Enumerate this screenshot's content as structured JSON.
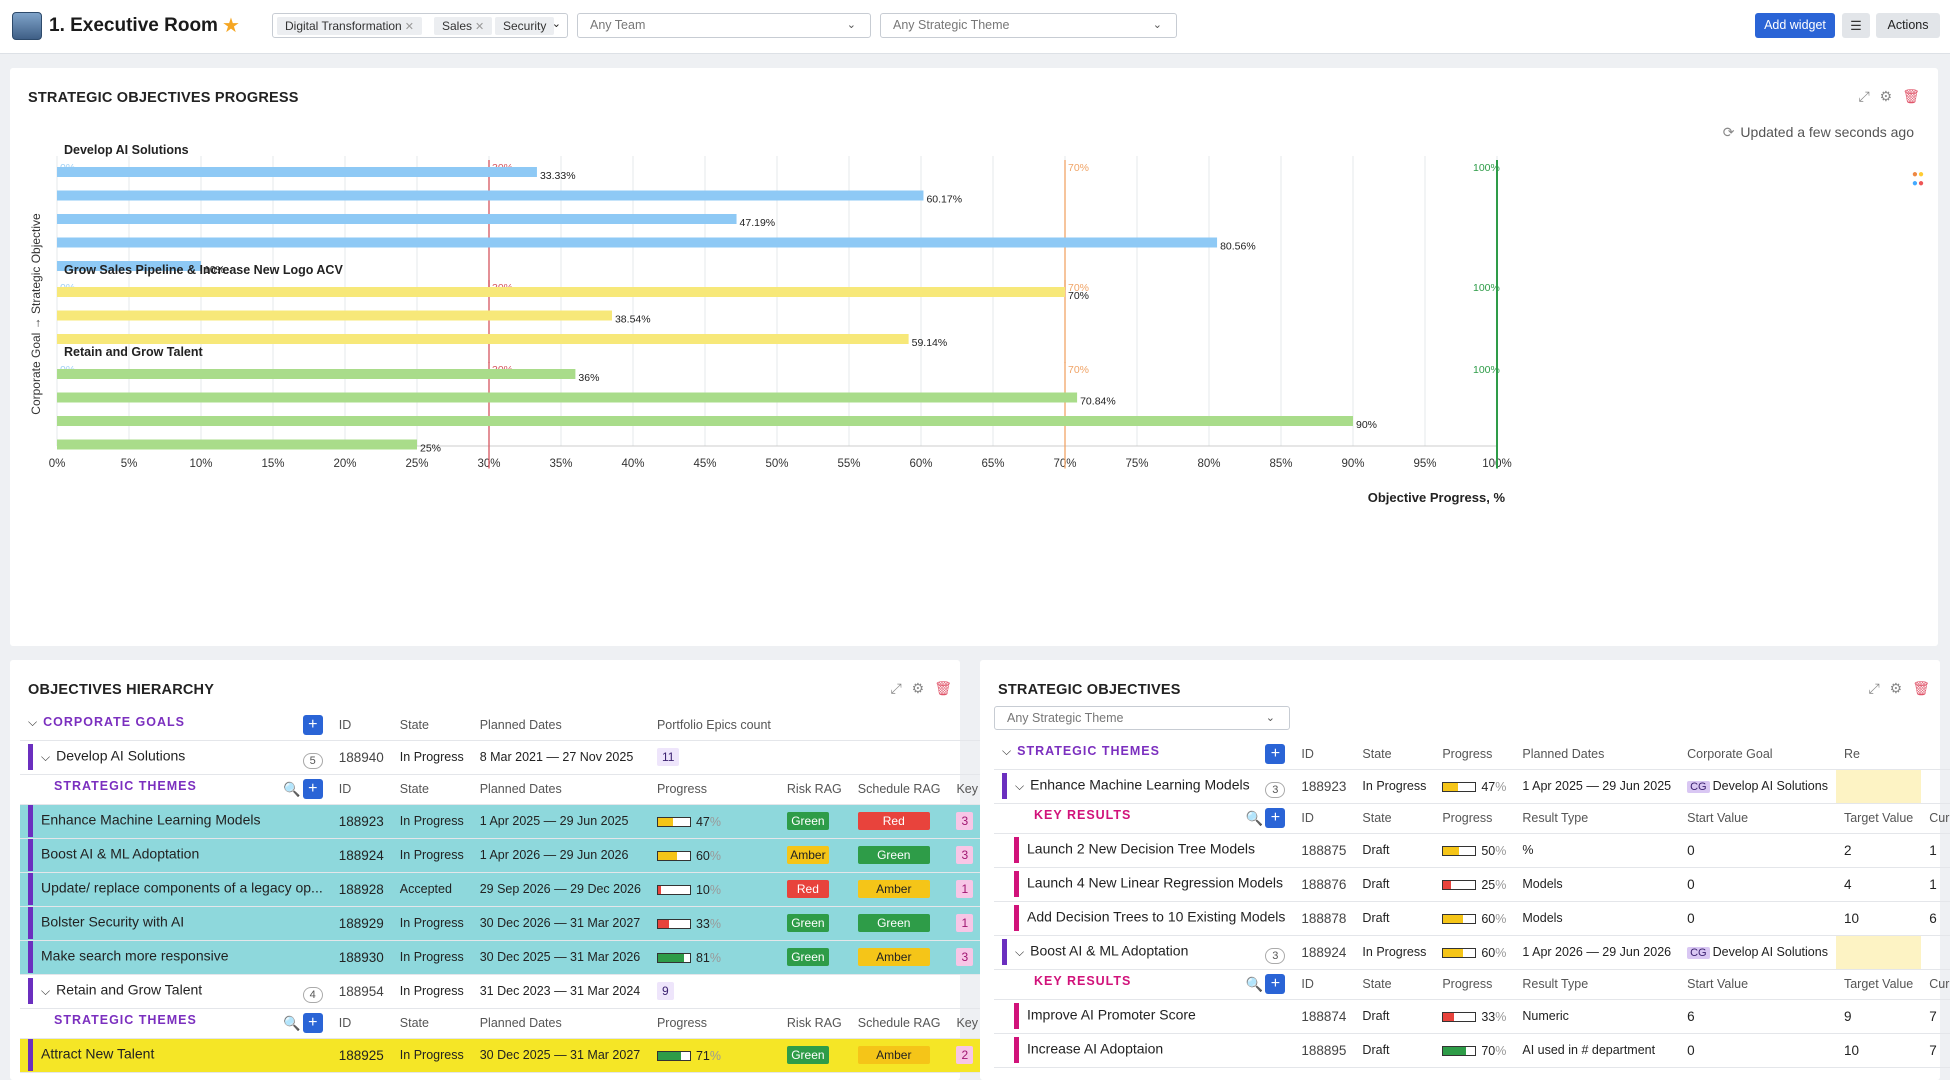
{
  "header": {
    "title": "1. Executive Room",
    "tags": [
      "Digital Transformation",
      "Sales",
      "Security"
    ],
    "team_select": "Any Team",
    "theme_select": "Any Strategic Theme",
    "add_widget": "Add widget",
    "actions": "Actions"
  },
  "progress_panel": {
    "title": "STRATEGIC OBJECTIVES PROGRESS",
    "updated": "Updated a few seconds ago",
    "y_axis_label": "Corporate Goal → Strategic Objective",
    "x_axis_label": "Objective Progress, %"
  },
  "chart_data": {
    "type": "bar",
    "orientation": "horizontal",
    "xlim": [
      0,
      100
    ],
    "x_ticks": [
      "0%",
      "5%",
      "10%",
      "15%",
      "20%",
      "25%",
      "30%",
      "35%",
      "40%",
      "45%",
      "50%",
      "55%",
      "60%",
      "65%",
      "70%",
      "75%",
      "80%",
      "85%",
      "90%",
      "95%",
      "100%"
    ],
    "xlabel": "Objective Progress, %",
    "ylabel": "Corporate Goal → Strategic Objective",
    "reference_lines": [
      {
        "label": "0%",
        "value": 0
      },
      {
        "label": "30%",
        "value": 30,
        "color": "#d6555f"
      },
      {
        "label": "70%",
        "value": 70,
        "color": "#f0a467"
      },
      {
        "label": "100%",
        "value": 100,
        "color": "#2e9c48"
      }
    ],
    "groups": [
      {
        "name": "Develop AI Solutions",
        "color": "#8ec9f5",
        "values": [
          33.33,
          60.17,
          47.19,
          80.56,
          10
        ],
        "labels": [
          "33.33%",
          "60.17%",
          "47.19%",
          "80.56%",
          "10%"
        ]
      },
      {
        "name": "Grow Sales Pipeline & Increase New Logo ACV",
        "color": "#f7e879",
        "values": [
          70,
          38.54,
          59.14
        ],
        "labels": [
          "70%",
          "38.54%",
          "59.14%"
        ]
      },
      {
        "name": "Retain and Grow Talent",
        "color": "#a9dc8a",
        "values": [
          36,
          70.84,
          90,
          25
        ],
        "labels": [
          "36%",
          "70.84%",
          "90%",
          "25%"
        ]
      }
    ]
  },
  "hierarchy": {
    "title": "OBJECTIVES HIERARCHY",
    "corporate_goals_label": "CORPORATE GOALS",
    "col_headers": [
      "ID",
      "State",
      "Planned Dates",
      "Portfolio Epics count"
    ],
    "theme_headers": [
      "ID",
      "State",
      "Planned Dates",
      "Progress",
      "Risk RAG",
      "Schedule RAG",
      "Key I"
    ],
    "themes_label": "STRATEGIC THEMES",
    "goals": [
      {
        "name": "Develop AI Solutions",
        "count": "5",
        "id": "188940",
        "state": "In Progress",
        "dates": "8 Mar 2021 — 27 Nov 2025",
        "epics": "11",
        "themes": [
          {
            "name": "Enhance Machine Learning Models",
            "id": "188923",
            "state": "In Progress",
            "dates": "1 Apr 2025 — 29 Jun 2025",
            "progress": "47",
            "risk": "Green",
            "schedule": "Red",
            "key": "3"
          },
          {
            "name": "Boost AI & ML Adoptation",
            "id": "188924",
            "state": "In Progress",
            "dates": "1 Apr 2026 — 29 Jun 2026",
            "progress": "60",
            "risk": "Amber",
            "schedule": "Green",
            "key": "3"
          },
          {
            "name": "Update/ replace components of a legacy op...",
            "id": "188928",
            "state": "Accepted",
            "dates": "29 Sep 2026 — 29 Dec 2026",
            "progress": "10",
            "risk": "Red",
            "schedule": "Amber",
            "key": "1"
          },
          {
            "name": "Bolster Security with AI",
            "id": "188929",
            "state": "In Progress",
            "dates": "30 Dec 2026 — 31 Mar 2027",
            "progress": "33",
            "risk": "Green",
            "schedule": "Green",
            "key": "1"
          },
          {
            "name": "Make search more responsive",
            "id": "188930",
            "state": "In Progress",
            "dates": "30 Dec 2025 — 31 Mar 2026",
            "progress": "81",
            "risk": "Green",
            "schedule": "Amber",
            "key": "3"
          }
        ]
      },
      {
        "name": "Retain and Grow Talent",
        "count": "4",
        "id": "188954",
        "state": "In Progress",
        "dates": "31 Dec 2023 — 31 Mar 2024",
        "epics": "9",
        "themes": [
          {
            "name": "Attract New Talent",
            "id": "188925",
            "state": "In Progress",
            "dates": "30 Dec 2025 — 31 Mar 2027",
            "progress": "71",
            "risk": "Green",
            "schedule": "Amber",
            "key": "2"
          }
        ]
      }
    ]
  },
  "strategic": {
    "title": "STRATEGIC OBJECTIVES",
    "filter": "Any Strategic Theme",
    "themes_label": "STRATEGIC THEMES",
    "theme_headers": [
      "ID",
      "State",
      "Progress",
      "Planned Dates",
      "Corporate Goal",
      "Re"
    ],
    "kr_label": "KEY RESULTS",
    "kr_headers": [
      "ID",
      "State",
      "Progress",
      "Result Type",
      "Start Value",
      "Target Value",
      "Current Value"
    ],
    "cg_tag": "CG",
    "themes": [
      {
        "name": "Enhance Machine Learning Models",
        "count": "3",
        "id": "188923",
        "state": "In Progress",
        "progress": "47",
        "dates": "1 Apr 2025 — 29 Jun 2025",
        "goal": "Develop AI Solutions",
        "krs": [
          {
            "name": "Launch 2 New Decision Tree Models",
            "id": "188875",
            "state": "Draft",
            "progress": "50",
            "type": "%",
            "start": "0",
            "target": "2",
            "current": "1"
          },
          {
            "name": "Launch 4 New Linear Regression Models",
            "id": "188876",
            "state": "Draft",
            "progress": "25",
            "type": "Models",
            "start": "0",
            "target": "4",
            "current": "1"
          },
          {
            "name": "Add Decision Trees to 10 Existing Models",
            "id": "188878",
            "state": "Draft",
            "progress": "60",
            "type": "Models",
            "start": "0",
            "target": "10",
            "current": "6"
          }
        ]
      },
      {
        "name": "Boost AI & ML Adoptation",
        "count": "3",
        "id": "188924",
        "state": "In Progress",
        "progress": "60",
        "dates": "1 Apr 2026 — 29 Jun 2026",
        "goal": "Develop AI Solutions",
        "krs": [
          {
            "name": "Improve AI Promoter Score",
            "id": "188874",
            "state": "Draft",
            "progress": "33",
            "type": "Numeric",
            "start": "6",
            "target": "9",
            "current": "7"
          },
          {
            "name": "Increase AI Adoptaion",
            "id": "188895",
            "state": "Draft",
            "progress": "70",
            "type": "AI used in # department",
            "start": "0",
            "target": "10",
            "current": "7"
          }
        ]
      }
    ]
  },
  "colors": {
    "accent": "#2a64d6",
    "green": "#2e9c48",
    "red": "#e8433c",
    "amber": "#f5c518",
    "purple": "#7b2fbf",
    "pink": "#d1127a"
  }
}
